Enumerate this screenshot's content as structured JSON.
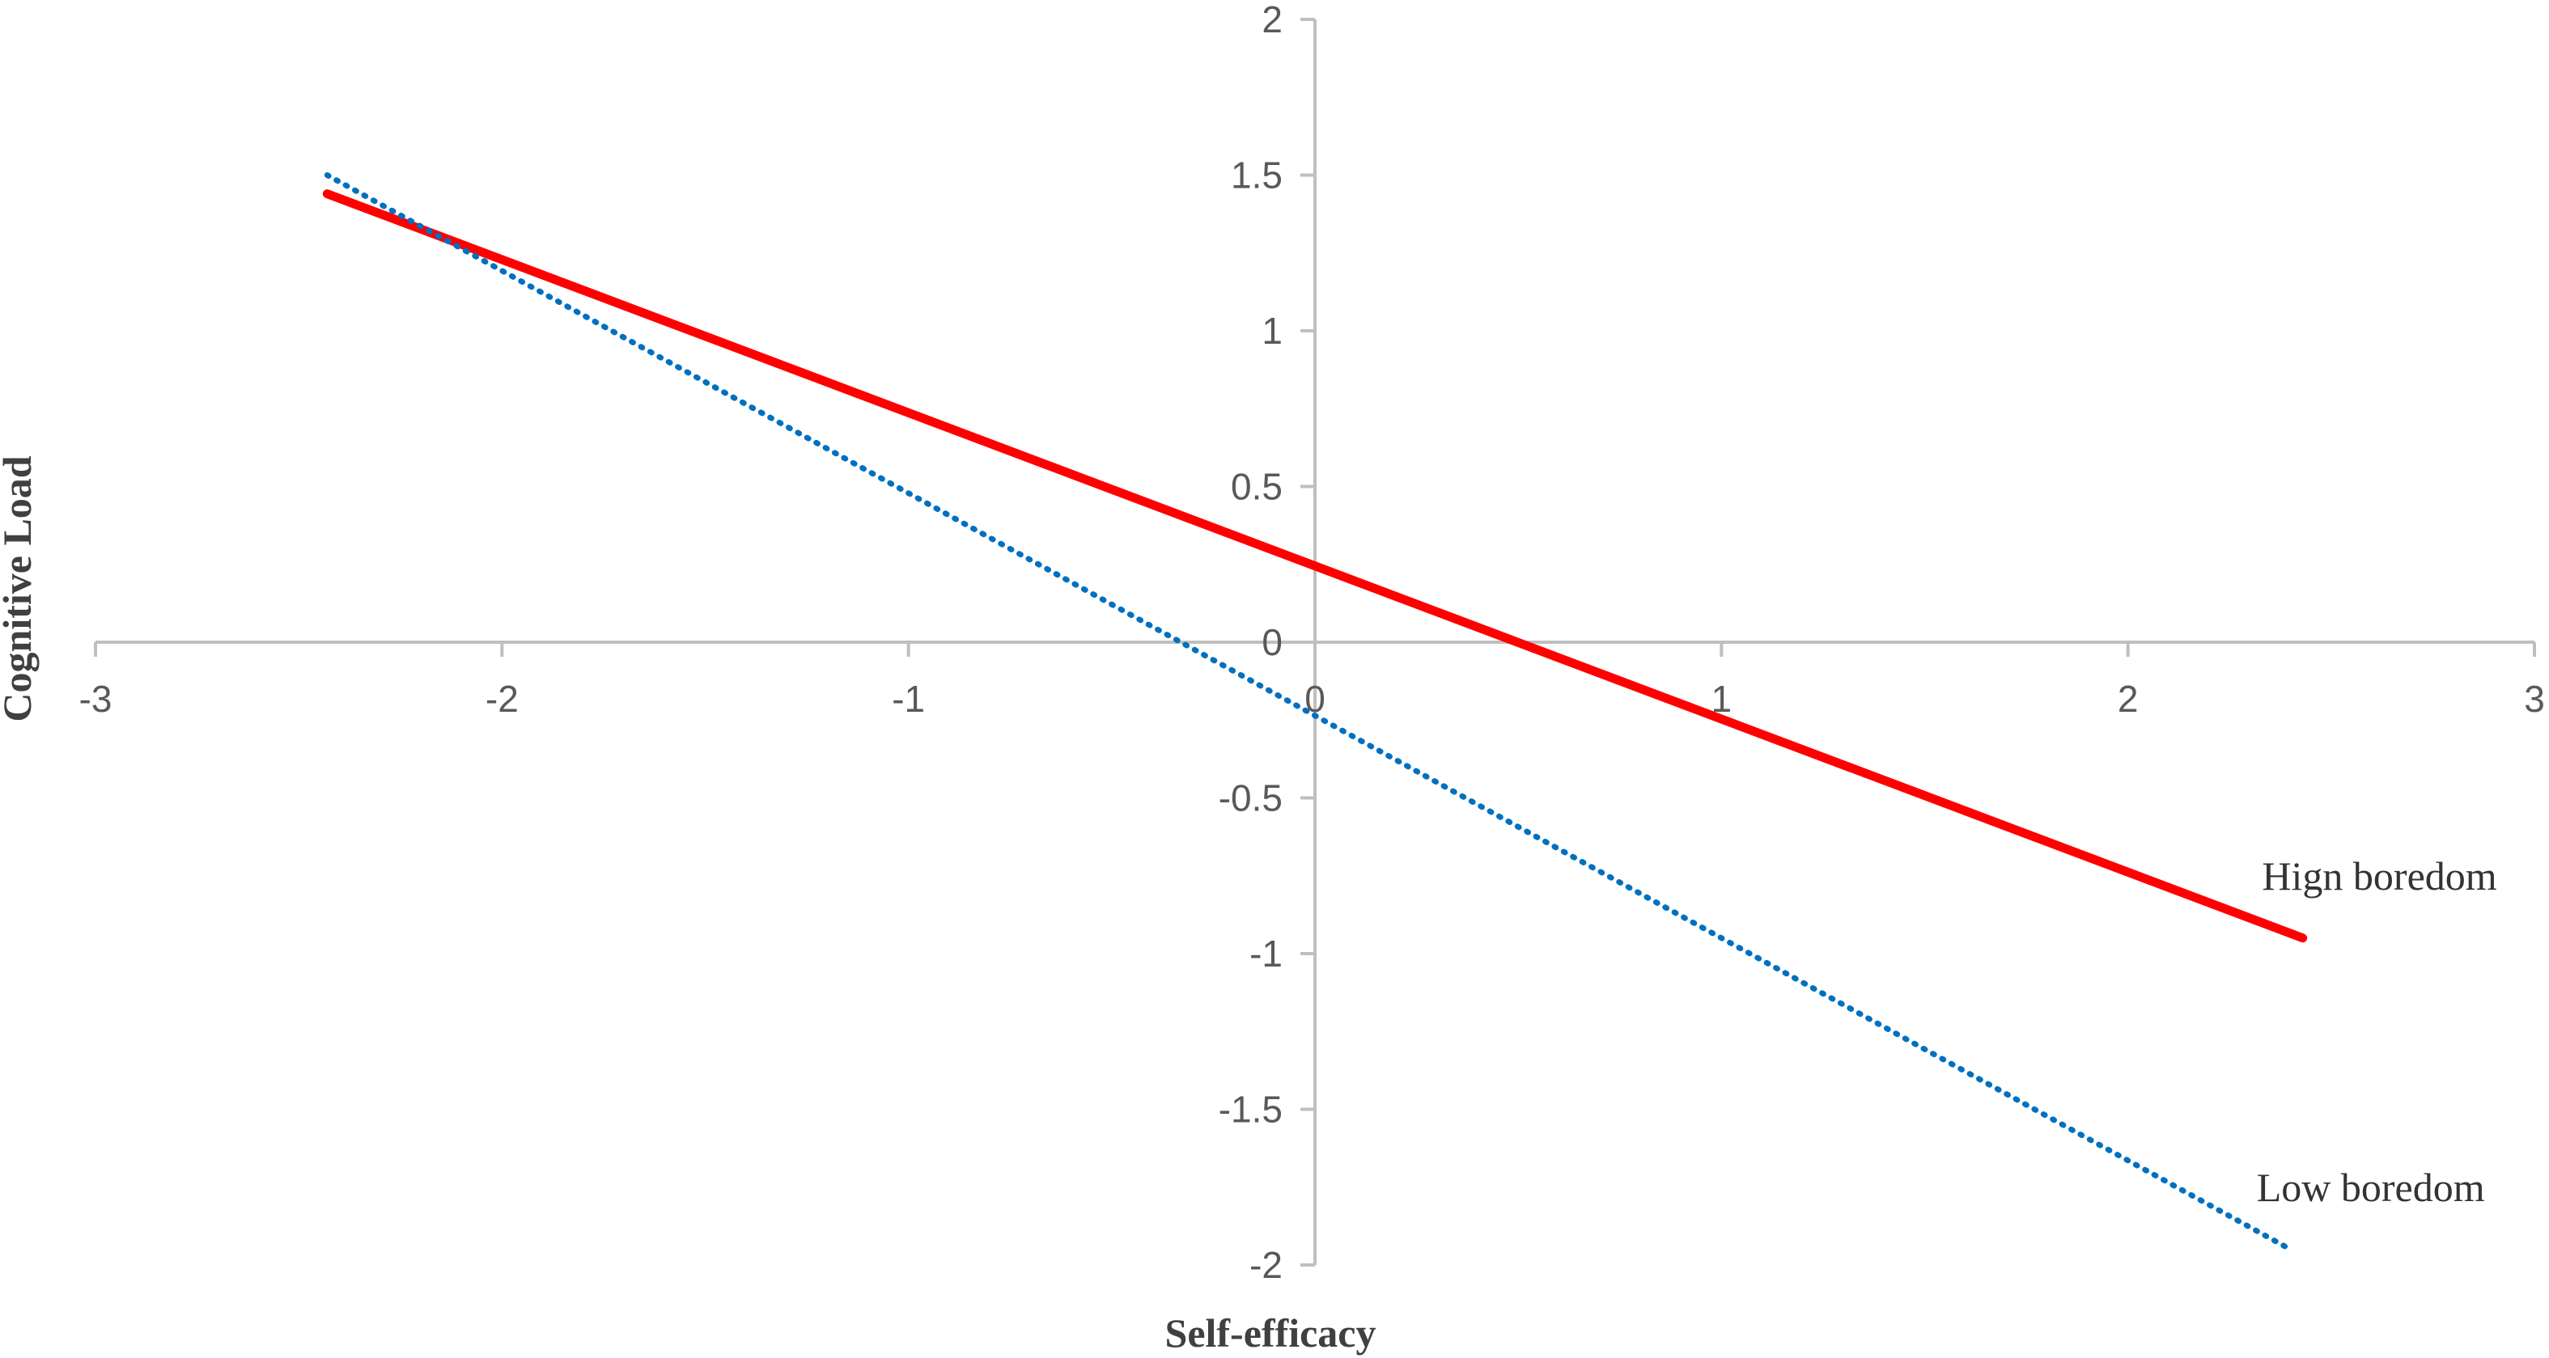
{
  "chart_data": {
    "type": "line",
    "title": "",
    "xlabel": "Self-efficacy",
    "ylabel": "Cognitive Load",
    "xlim": [
      -3,
      3
    ],
    "ylim": [
      -2,
      2
    ],
    "x_ticks": [
      "-3",
      "-2",
      "-1",
      "0",
      "1",
      "2",
      "3"
    ],
    "y_ticks": [
      "2",
      "1.5",
      "1",
      "0.5",
      "0",
      "-0.5",
      "-1",
      "-1.5",
      "-2"
    ],
    "grid": false,
    "series": [
      {
        "name": "Hign boredom",
        "style": "solid",
        "color": "#ff0000",
        "x": [
          -2.43,
          2.43
        ],
        "y": [
          1.44,
          -0.95
        ]
      },
      {
        "name": "Low boredom",
        "style": "dotted",
        "color": "#0070c0",
        "x": [
          -2.43,
          2.4
        ],
        "y": [
          1.5,
          -1.95
        ]
      }
    ]
  }
}
